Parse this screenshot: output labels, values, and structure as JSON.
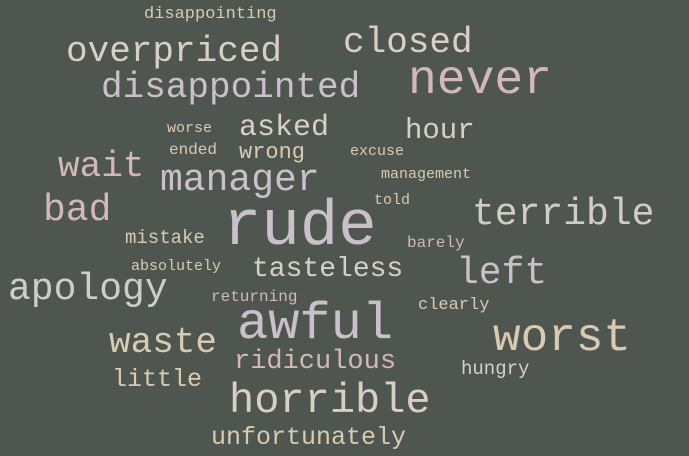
{
  "words": [
    {
      "text": "disappointing",
      "weight": 1
    },
    {
      "text": "overpriced",
      "weight": 4
    },
    {
      "text": "closed",
      "weight": 4
    },
    {
      "text": "never",
      "weight": 5
    },
    {
      "text": "disappointed",
      "weight": 4
    },
    {
      "text": "worse",
      "weight": 1
    },
    {
      "text": "asked",
      "weight": 3
    },
    {
      "text": "hour",
      "weight": 3
    },
    {
      "text": "ended",
      "weight": 1
    },
    {
      "text": "wrong",
      "weight": 2
    },
    {
      "text": "excuse",
      "weight": 1
    },
    {
      "text": "wait",
      "weight": 3
    },
    {
      "text": "manager",
      "weight": 4
    },
    {
      "text": "management",
      "weight": 1
    },
    {
      "text": "told",
      "weight": 1
    },
    {
      "text": "bad",
      "weight": 4
    },
    {
      "text": "rude",
      "weight": 6
    },
    {
      "text": "terrible",
      "weight": 4
    },
    {
      "text": "mistake",
      "weight": 2
    },
    {
      "text": "barely",
      "weight": 1
    },
    {
      "text": "absolutely",
      "weight": 1
    },
    {
      "text": "tasteless",
      "weight": 3
    },
    {
      "text": "left",
      "weight": 4
    },
    {
      "text": "apology",
      "weight": 4
    },
    {
      "text": "returning",
      "weight": 1
    },
    {
      "text": "awful",
      "weight": 5
    },
    {
      "text": "clearly",
      "weight": 1
    },
    {
      "text": "worst",
      "weight": 5
    },
    {
      "text": "waste",
      "weight": 4
    },
    {
      "text": "ridiculous",
      "weight": 3
    },
    {
      "text": "hungry",
      "weight": 1
    },
    {
      "text": "little",
      "weight": 2
    },
    {
      "text": "horrible",
      "weight": 4
    },
    {
      "text": "unfortunately",
      "weight": 2
    }
  ]
}
